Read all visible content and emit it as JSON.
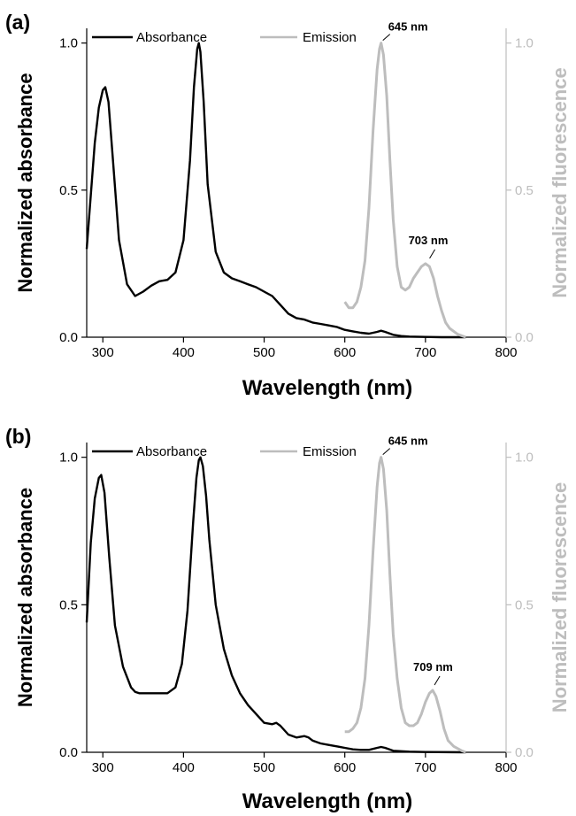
{
  "chart_data": [
    {
      "panel_label": "(a)",
      "type": "line",
      "xlabel": "Wavelength (nm)",
      "ylabel_left": "Normalized absorbance",
      "ylabel_right": "Normalized fluorescence",
      "xlim": [
        280,
        800
      ],
      "ylim": [
        0,
        1.05
      ],
      "xticks": [
        "300",
        "400",
        "500",
        "600",
        "700",
        "800"
      ],
      "yticks_left": [
        "0.0",
        "0.5",
        "1.0"
      ],
      "yticks_right": [
        "0.0",
        "0.5",
        "1.0"
      ],
      "legend_position": "top",
      "colors": {
        "absorbance": "#000000",
        "emission": "#bdbdbd",
        "right_axis": "#bdbdbd"
      },
      "series": [
        {
          "name": "Absorbance",
          "axis": "left",
          "x": [
            280,
            290,
            295,
            300,
            303,
            307,
            312,
            320,
            330,
            340,
            350,
            360,
            370,
            380,
            390,
            400,
            408,
            413,
            417,
            419,
            421,
            425,
            430,
            440,
            450,
            460,
            470,
            480,
            490,
            500,
            510,
            520,
            530,
            540,
            550,
            560,
            570,
            580,
            590,
            600,
            610,
            620,
            630,
            640,
            645,
            650,
            660,
            670,
            680,
            700,
            720,
            750
          ],
          "y": [
            0.3,
            0.66,
            0.78,
            0.84,
            0.85,
            0.8,
            0.62,
            0.33,
            0.18,
            0.14,
            0.155,
            0.175,
            0.19,
            0.195,
            0.22,
            0.33,
            0.6,
            0.85,
            0.98,
            1.0,
            0.97,
            0.8,
            0.52,
            0.29,
            0.22,
            0.2,
            0.19,
            0.18,
            0.17,
            0.155,
            0.14,
            0.11,
            0.08,
            0.065,
            0.06,
            0.05,
            0.045,
            0.04,
            0.035,
            0.025,
            0.02,
            0.015,
            0.012,
            0.018,
            0.022,
            0.018,
            0.008,
            0.004,
            0.002,
            0.001,
            0.0,
            0.0
          ]
        },
        {
          "name": "Emission",
          "axis": "right",
          "x": [
            600,
            605,
            610,
            615,
            620,
            625,
            630,
            635,
            640,
            643,
            645,
            648,
            652,
            656,
            660,
            665,
            670,
            675,
            680,
            685,
            690,
            695,
            700,
            705,
            710,
            715,
            720,
            725,
            730,
            740,
            750
          ],
          "y": [
            0.12,
            0.1,
            0.1,
            0.12,
            0.17,
            0.26,
            0.44,
            0.7,
            0.91,
            0.98,
            1.0,
            0.96,
            0.82,
            0.6,
            0.4,
            0.24,
            0.17,
            0.16,
            0.17,
            0.2,
            0.22,
            0.24,
            0.25,
            0.24,
            0.2,
            0.14,
            0.09,
            0.05,
            0.03,
            0.01,
            0.0
          ]
        }
      ],
      "annotations": [
        {
          "text": "645 nm",
          "x": 645,
          "y": 1.0
        },
        {
          "text": "703 nm",
          "x": 703,
          "y": 0.25
        }
      ]
    },
    {
      "panel_label": "(b)",
      "type": "line",
      "xlabel": "Wavelength (nm)",
      "ylabel_left": "Normalized absorbance",
      "ylabel_right": "Normalized fluorescence",
      "xlim": [
        280,
        800
      ],
      "ylim": [
        0,
        1.05
      ],
      "xticks": [
        "300",
        "400",
        "500",
        "600",
        "700",
        "800"
      ],
      "yticks_left": [
        "0.0",
        "0.5",
        "1.0"
      ],
      "yticks_right": [
        "0.0",
        "0.5",
        "1.0"
      ],
      "legend_position": "top",
      "colors": {
        "absorbance": "#000000",
        "emission": "#bdbdbd",
        "right_axis": "#bdbdbd"
      },
      "series": [
        {
          "name": "Absorbance",
          "axis": "left",
          "x": [
            280,
            285,
            290,
            295,
            298,
            302,
            308,
            315,
            325,
            335,
            340,
            345,
            350,
            360,
            370,
            380,
            390,
            398,
            405,
            412,
            416,
            419,
            421,
            424,
            428,
            432,
            440,
            450,
            460,
            470,
            480,
            490,
            500,
            510,
            515,
            520,
            530,
            540,
            550,
            555,
            560,
            570,
            580,
            590,
            600,
            610,
            620,
            630,
            640,
            645,
            650,
            660,
            680,
            700,
            750
          ],
          "y": [
            0.44,
            0.71,
            0.86,
            0.93,
            0.94,
            0.88,
            0.66,
            0.43,
            0.29,
            0.22,
            0.205,
            0.2,
            0.2,
            0.2,
            0.2,
            0.2,
            0.22,
            0.3,
            0.48,
            0.78,
            0.93,
            0.99,
            1.0,
            0.97,
            0.87,
            0.72,
            0.5,
            0.35,
            0.26,
            0.2,
            0.16,
            0.13,
            0.1,
            0.095,
            0.1,
            0.09,
            0.06,
            0.05,
            0.055,
            0.05,
            0.04,
            0.03,
            0.025,
            0.02,
            0.015,
            0.01,
            0.008,
            0.008,
            0.015,
            0.018,
            0.015,
            0.005,
            0.002,
            0.001,
            0.0
          ]
        },
        {
          "name": "Emission",
          "axis": "right",
          "x": [
            600,
            605,
            610,
            615,
            620,
            625,
            630,
            635,
            640,
            643,
            645,
            648,
            652,
            656,
            660,
            665,
            670,
            675,
            680,
            685,
            690,
            695,
            700,
            705,
            709,
            713,
            718,
            723,
            728,
            735,
            745,
            750
          ],
          "y": [
            0.07,
            0.07,
            0.08,
            0.1,
            0.15,
            0.25,
            0.43,
            0.68,
            0.9,
            0.98,
            1.0,
            0.96,
            0.82,
            0.6,
            0.4,
            0.25,
            0.15,
            0.1,
            0.09,
            0.09,
            0.1,
            0.13,
            0.17,
            0.2,
            0.21,
            0.19,
            0.14,
            0.08,
            0.04,
            0.02,
            0.005,
            0.0
          ]
        }
      ],
      "annotations": [
        {
          "text": "645 nm",
          "x": 645,
          "y": 1.0
        },
        {
          "text": "709 nm",
          "x": 709,
          "y": 0.21
        }
      ]
    }
  ]
}
